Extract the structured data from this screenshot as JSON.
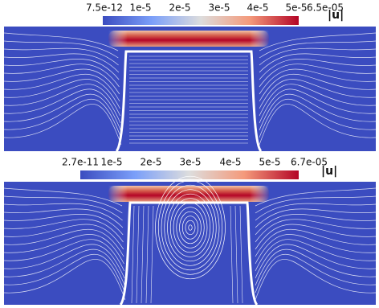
{
  "panels": [
    {
      "colorbar": {
        "ticks": [
          "7.5e-12",
          "1e-5",
          "2e-5",
          "3e-5",
          "4e-5",
          "5e-5",
          "6.5e-05"
        ],
        "label": "|u|"
      }
    },
    {
      "colorbar": {
        "ticks": [
          "2.7e-11",
          "1e-5",
          "2e-5",
          "3e-5",
          "4e-5",
          "5e-5",
          "6.7e-05"
        ],
        "label": "|u|"
      }
    }
  ]
}
